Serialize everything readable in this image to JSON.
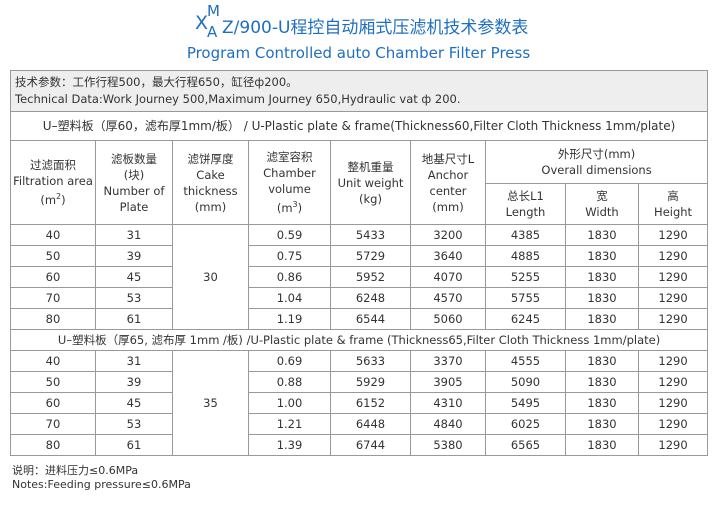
{
  "header": {
    "title": {
      "x": "X",
      "sup": "M",
      "sub": "A",
      "rest": "Z/900-U程控自动厢式压滤机技术参数表"
    },
    "subtitle": "Program Controlled auto Chamber Filter Press"
  },
  "table": {
    "info": [
      "技术参数：工作行程500，最大行程650，缸径ф200。",
      "Technical Data:Work Journey 500,Maximum Journey 650,Hydraulic vat ф 200."
    ],
    "columns": [
      {
        "lines": [
          "过滤面积",
          "Filtration area"
        ],
        "unit": {
          "pre": "(m",
          "sup": "2",
          "post": ")"
        }
      },
      {
        "lines": [
          "滤板数量",
          "(块)",
          "Number of",
          "Plate"
        ]
      },
      {
        "lines": [
          "滤饼厚度",
          "Cake",
          "thickness",
          "(mm)"
        ]
      },
      {
        "lines": [
          "滤室容积",
          "Chamber",
          "volume"
        ],
        "unit": {
          "pre": "(m",
          "sup": "3",
          "post": ")"
        }
      },
      {
        "lines": [
          "整机重量",
          "Unit weight",
          "(kg)"
        ]
      },
      {
        "lines": [
          "地基尺寸L",
          "Anchor",
          "center",
          "(mm)"
        ]
      },
      {
        "lines": [
          "外形尺寸(mm)",
          "Overall dimensions"
        ],
        "sub": [
          {
            "lines": [
              "总长L1",
              "Length"
            ]
          },
          {
            "lines": [
              "宽",
              "Width"
            ]
          },
          {
            "lines": [
              "高",
              "Height"
            ]
          }
        ]
      }
    ],
    "sections": [
      {
        "title": "U–塑料板（厚60，滤布厚1mm/板） / U-Plastic plate & frame(Thickness60,Filter Cloth Thickness 1mm/plate)",
        "cake": "30",
        "rows": [
          [
            "40",
            "31",
            "0.59",
            "5433",
            "3200",
            "4385",
            "1830",
            "1290"
          ],
          [
            "50",
            "39",
            "0.75",
            "5729",
            "3640",
            "4885",
            "1830",
            "1290"
          ],
          [
            "60",
            "45",
            "0.86",
            "5952",
            "4070",
            "5255",
            "1830",
            "1290"
          ],
          [
            "70",
            "53",
            "1.04",
            "6248",
            "4570",
            "5755",
            "1830",
            "1290"
          ],
          [
            "80",
            "61",
            "1.19",
            "6544",
            "5060",
            "6245",
            "1830",
            "1290"
          ]
        ]
      },
      {
        "title": "U–塑料板（厚65, 滤布厚 1mm /板) /U-Plastic plate & frame (Thickness65,Filter Cloth Thickness 1mm/plate)",
        "cake": "35",
        "rows": [
          [
            "40",
            "31",
            "0.69",
            "5633",
            "3370",
            "4555",
            "1830",
            "1290"
          ],
          [
            "50",
            "39",
            "0.88",
            "5929",
            "3905",
            "5090",
            "1830",
            "1290"
          ],
          [
            "60",
            "45",
            "1.00",
            "6152",
            "4310",
            "5495",
            "1830",
            "1290"
          ],
          [
            "70",
            "53",
            "1.21",
            "6448",
            "4840",
            "6025",
            "1830",
            "1290"
          ],
          [
            "80",
            "61",
            "1.39",
            "6744",
            "5380",
            "6565",
            "1830",
            "1290"
          ]
        ]
      }
    ]
  },
  "notes": [
    "说明：进料压力≤0.6MPa",
    "Notes:Feeding pressure≤0.6MPa"
  ]
}
